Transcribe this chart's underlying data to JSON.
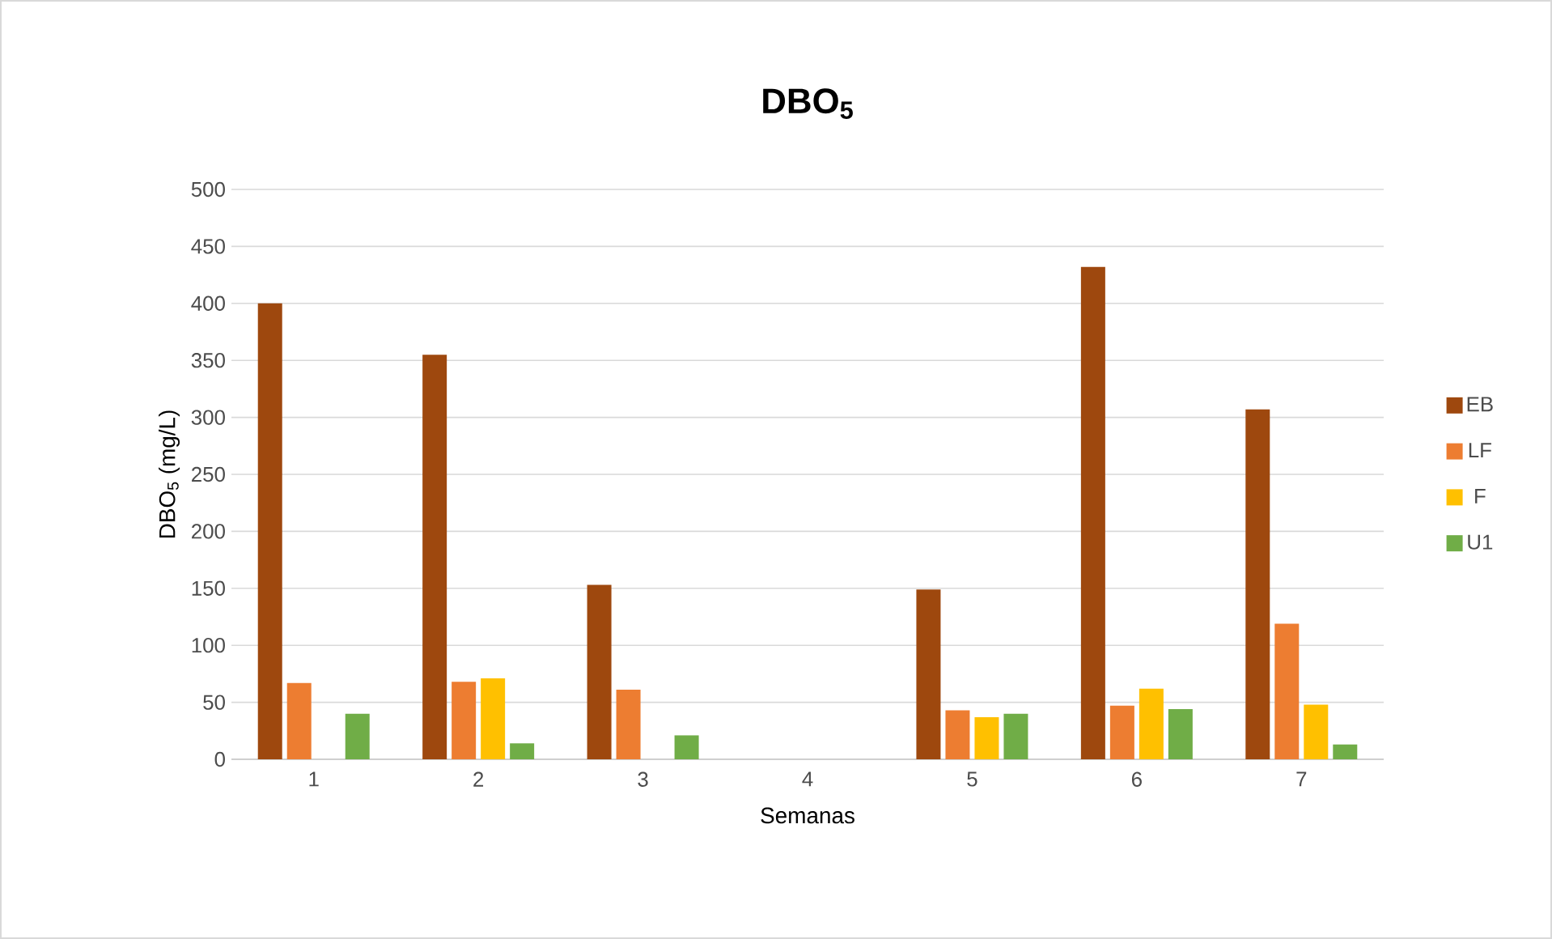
{
  "chart_data": {
    "type": "bar",
    "title": "DBO$_{5}$",
    "xlabel": "Semanas",
    "ylabel": "DBO$_{5}$ (mg/L)",
    "categories": [
      "1",
      "2",
      "3",
      "4",
      "5",
      "6",
      "7"
    ],
    "series": [
      {
        "name": "EB",
        "color": "#9e480e",
        "values": [
          400,
          355,
          153,
          null,
          149,
          432,
          307
        ]
      },
      {
        "name": "LF",
        "color": "#ed7d31",
        "values": [
          67,
          68,
          61,
          null,
          43,
          47,
          119
        ]
      },
      {
        "name": "F",
        "color": "#ffc000",
        "values": [
          null,
          71,
          null,
          null,
          37,
          62,
          48
        ]
      },
      {
        "name": "U1",
        "color": "#70ad47",
        "values": [
          40,
          14,
          21,
          null,
          40,
          44,
          13
        ]
      }
    ],
    "ylim": [
      0,
      500
    ],
    "yticks": [
      0,
      50,
      100,
      150,
      200,
      250,
      300,
      350,
      400,
      450,
      500
    ],
    "grid": "y",
    "legend": "right"
  }
}
